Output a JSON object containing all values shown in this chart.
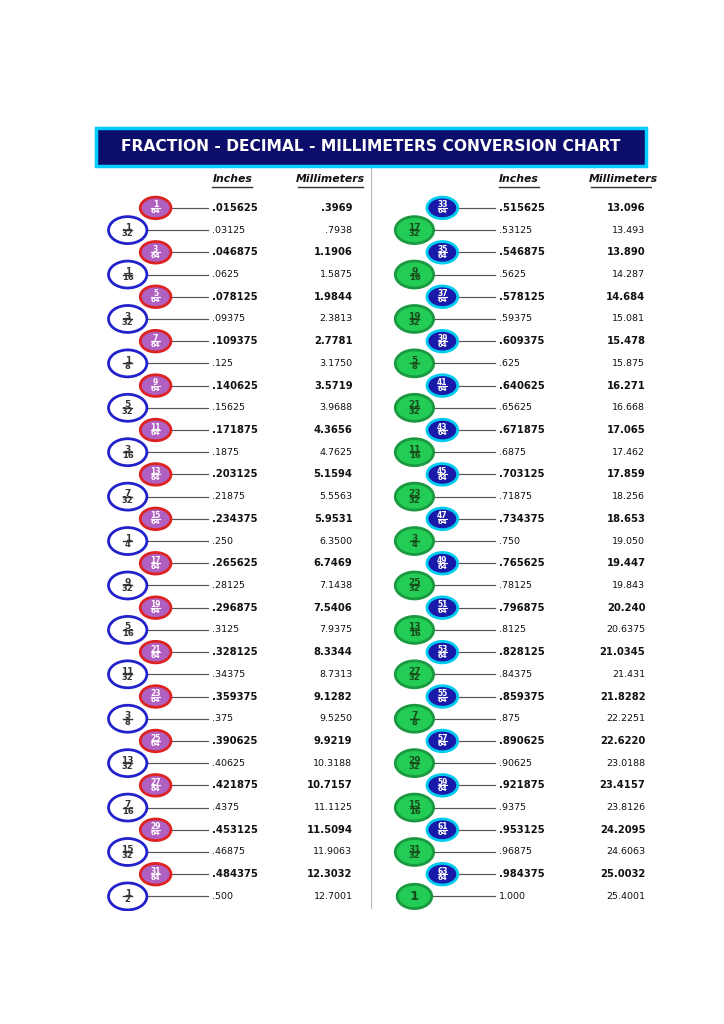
{
  "title": "FRACTION - DECIMAL - MILLIMETERS CONVERSION CHART",
  "title_bg": "#0d0d6b",
  "title_fg": "#ffffff",
  "title_border": "#00ccff",
  "rows_left": [
    {
      "frac": "1/64",
      "dec": ".015625",
      "mm": ".3969",
      "bold": true,
      "type": "64th"
    },
    {
      "frac": "1/32",
      "dec": ".03125",
      "mm": ".7938",
      "bold": false,
      "type": "other"
    },
    {
      "frac": "3/64",
      "dec": ".046875",
      "mm": "1.1906",
      "bold": true,
      "type": "64th"
    },
    {
      "frac": "1/16",
      "dec": ".0625",
      "mm": "1.5875",
      "bold": false,
      "type": "other"
    },
    {
      "frac": "5/64",
      "dec": ".078125",
      "mm": "1.9844",
      "bold": true,
      "type": "64th"
    },
    {
      "frac": "3/32",
      "dec": ".09375",
      "mm": "2.3813",
      "bold": false,
      "type": "other"
    },
    {
      "frac": "7/64",
      "dec": ".109375",
      "mm": "2.7781",
      "bold": true,
      "type": "64th"
    },
    {
      "frac": "1/8",
      "dec": ".125",
      "mm": "3.1750",
      "bold": false,
      "type": "other"
    },
    {
      "frac": "9/64",
      "dec": ".140625",
      "mm": "3.5719",
      "bold": true,
      "type": "64th"
    },
    {
      "frac": "5/32",
      "dec": ".15625",
      "mm": "3.9688",
      "bold": false,
      "type": "other"
    },
    {
      "frac": "11/64",
      "dec": ".171875",
      "mm": "4.3656",
      "bold": true,
      "type": "64th"
    },
    {
      "frac": "3/16",
      "dec": ".1875",
      "mm": "4.7625",
      "bold": false,
      "type": "other"
    },
    {
      "frac": "13/64",
      "dec": ".203125",
      "mm": "5.1594",
      "bold": true,
      "type": "64th"
    },
    {
      "frac": "7/32",
      "dec": ".21875",
      "mm": "5.5563",
      "bold": false,
      "type": "other"
    },
    {
      "frac": "15/64",
      "dec": ".234375",
      "mm": "5.9531",
      "bold": true,
      "type": "64th"
    },
    {
      "frac": "1/4",
      "dec": ".250",
      "mm": "6.3500",
      "bold": false,
      "type": "other"
    },
    {
      "frac": "17/64",
      "dec": ".265625",
      "mm": "6.7469",
      "bold": true,
      "type": "64th"
    },
    {
      "frac": "9/32",
      "dec": ".28125",
      "mm": "7.1438",
      "bold": false,
      "type": "other"
    },
    {
      "frac": "19/64",
      "dec": ".296875",
      "mm": "7.5406",
      "bold": true,
      "type": "64th"
    },
    {
      "frac": "5/16",
      "dec": ".3125",
      "mm": "7.9375",
      "bold": false,
      "type": "other"
    },
    {
      "frac": "21/64",
      "dec": ".328125",
      "mm": "8.3344",
      "bold": true,
      "type": "64th"
    },
    {
      "frac": "11/32",
      "dec": ".34375",
      "mm": "8.7313",
      "bold": false,
      "type": "other"
    },
    {
      "frac": "23/64",
      "dec": ".359375",
      "mm": "9.1282",
      "bold": true,
      "type": "64th"
    },
    {
      "frac": "3/8",
      "dec": ".375",
      "mm": "9.5250",
      "bold": false,
      "type": "other"
    },
    {
      "frac": "25/64",
      "dec": ".390625",
      "mm": "9.9219",
      "bold": true,
      "type": "64th"
    },
    {
      "frac": "13/32",
      "dec": ".40625",
      "mm": "10.3188",
      "bold": false,
      "type": "other"
    },
    {
      "frac": "27/64",
      "dec": ".421875",
      "mm": "10.7157",
      "bold": true,
      "type": "64th"
    },
    {
      "frac": "7/16",
      "dec": ".4375",
      "mm": "11.1125",
      "bold": false,
      "type": "other"
    },
    {
      "frac": "29/64",
      "dec": ".453125",
      "mm": "11.5094",
      "bold": true,
      "type": "64th"
    },
    {
      "frac": "15/32",
      "dec": ".46875",
      "mm": "11.9063",
      "bold": false,
      "type": "other"
    },
    {
      "frac": "31/64",
      "dec": ".484375",
      "mm": "12.3032",
      "bold": true,
      "type": "64th"
    },
    {
      "frac": "1/2",
      "dec": ".500",
      "mm": "12.7001",
      "bold": false,
      "type": "other"
    }
  ],
  "rows_right": [
    {
      "frac": "33/64",
      "dec": ".515625",
      "mm": "13.096",
      "bold": true,
      "type": "64th"
    },
    {
      "frac": "17/32",
      "dec": ".53125",
      "mm": "13.493",
      "bold": false,
      "type": "other"
    },
    {
      "frac": "35/64",
      "dec": ".546875",
      "mm": "13.890",
      "bold": true,
      "type": "64th"
    },
    {
      "frac": "9/16",
      "dec": ".5625",
      "mm": "14.287",
      "bold": false,
      "type": "other"
    },
    {
      "frac": "37/64",
      "dec": ".578125",
      "mm": "14.684",
      "bold": true,
      "type": "64th"
    },
    {
      "frac": "19/32",
      "dec": ".59375",
      "mm": "15.081",
      "bold": false,
      "type": "other"
    },
    {
      "frac": "39/64",
      "dec": ".609375",
      "mm": "15.478",
      "bold": true,
      "type": "64th"
    },
    {
      "frac": "5/8",
      "dec": ".625",
      "mm": "15.875",
      "bold": false,
      "type": "other"
    },
    {
      "frac": "41/64",
      "dec": ".640625",
      "mm": "16.271",
      "bold": true,
      "type": "64th"
    },
    {
      "frac": "21/32",
      "dec": ".65625",
      "mm": "16.668",
      "bold": false,
      "type": "other"
    },
    {
      "frac": "43/64",
      "dec": ".671875",
      "mm": "17.065",
      "bold": true,
      "type": "64th"
    },
    {
      "frac": "11/16",
      "dec": ".6875",
      "mm": "17.462",
      "bold": false,
      "type": "other"
    },
    {
      "frac": "45/64",
      "dec": ".703125",
      "mm": "17.859",
      "bold": true,
      "type": "64th"
    },
    {
      "frac": "23/32",
      "dec": ".71875",
      "mm": "18.256",
      "bold": false,
      "type": "other"
    },
    {
      "frac": "47/64",
      "dec": ".734375",
      "mm": "18.653",
      "bold": true,
      "type": "64th"
    },
    {
      "frac": "3/4",
      "dec": ".750",
      "mm": "19.050",
      "bold": false,
      "type": "other"
    },
    {
      "frac": "49/64",
      "dec": ".765625",
      "mm": "19.447",
      "bold": true,
      "type": "64th"
    },
    {
      "frac": "25/32",
      "dec": ".78125",
      "mm": "19.843",
      "bold": false,
      "type": "other"
    },
    {
      "frac": "51/64",
      "dec": ".796875",
      "mm": "20.240",
      "bold": true,
      "type": "64th"
    },
    {
      "frac": "13/16",
      "dec": ".8125",
      "mm": "20.6375",
      "bold": false,
      "type": "other"
    },
    {
      "frac": "53/64",
      "dec": ".828125",
      "mm": "21.0345",
      "bold": true,
      "type": "64th"
    },
    {
      "frac": "27/32",
      "dec": ".84375",
      "mm": "21.431",
      "bold": false,
      "type": "other"
    },
    {
      "frac": "55/64",
      "dec": ".859375",
      "mm": "21.8282",
      "bold": true,
      "type": "64th"
    },
    {
      "frac": "7/8",
      "dec": ".875",
      "mm": "22.2251",
      "bold": false,
      "type": "other"
    },
    {
      "frac": "57/64",
      "dec": ".890625",
      "mm": "22.6220",
      "bold": true,
      "type": "64th"
    },
    {
      "frac": "29/32",
      "dec": ".90625",
      "mm": "23.0188",
      "bold": false,
      "type": "other"
    },
    {
      "frac": "59/64",
      "dec": ".921875",
      "mm": "23.4157",
      "bold": true,
      "type": "64th"
    },
    {
      "frac": "15/16",
      "dec": ".9375",
      "mm": "23.8126",
      "bold": false,
      "type": "other"
    },
    {
      "frac": "61/64",
      "dec": ".953125",
      "mm": "24.2095",
      "bold": true,
      "type": "64th"
    },
    {
      "frac": "31/32",
      "dec": ".96875",
      "mm": "24.6063",
      "bold": false,
      "type": "other"
    },
    {
      "frac": "63/64",
      "dec": ".984375",
      "mm": "25.0032",
      "bold": true,
      "type": "64th"
    },
    {
      "frac": "1",
      "dec": "1.000",
      "mm": "25.4001",
      "bold": false,
      "type": "whole"
    }
  ],
  "L64_fill": "#b060c0",
  "L64_edge": "#dd2222",
  "L64_tc": "#ffffff",
  "Loth_fill": "#ffffff",
  "Loth_edge": "#2222cc",
  "Loth_tc": "#333333",
  "R64_fill": "#1a1aaa",
  "R64_edge": "#00ccee",
  "R64_tc": "#ffffff",
  "Roth_fill": "#22cc55",
  "Roth_edge": "#1a9940",
  "Roth_tc": "#1a4a1a",
  "Rwhole_fill": "#22cc55",
  "Rwhole_edge": "#1a9940",
  "Rwhole_tc": "#1a4a1a"
}
